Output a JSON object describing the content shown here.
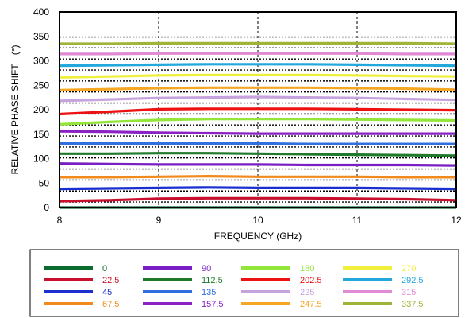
{
  "chart_data": {
    "type": "line",
    "title": "",
    "xlabel": "FREQUENCY (GHz)",
    "ylabel": "RELATIVE PHASE SHIFT",
    "ylabel_unit": "(°)",
    "xlim": [
      8,
      12
    ],
    "ylim": [
      0,
      400
    ],
    "xticks": [
      "8",
      "9",
      "10",
      "11",
      "12"
    ],
    "yticks": [
      "0",
      "50",
      "100",
      "150",
      "200",
      "250",
      "300",
      "350",
      "400"
    ],
    "x_grid": "vertical dashed lines at 9, 10, 11",
    "y_reference_lines": [
      11.25,
      33.75,
      56.25,
      78.75,
      101.25,
      123.75,
      146.25,
      168.75,
      191.25,
      213.75,
      236.25,
      258.75,
      281.25,
      303.75,
      326.25,
      348.75
    ],
    "legend_placement": "bottom",
    "x": [
      8,
      8.5,
      9,
      9.5,
      10,
      10.5,
      11,
      11.5,
      12
    ],
    "series": [
      {
        "name": "0",
        "color": "#0a6b2e",
        "values": [
          0,
          0,
          0,
          0,
          0,
          0,
          0,
          0,
          0
        ]
      },
      {
        "name": "22.5",
        "color": "#c8102e",
        "values": [
          13,
          15,
          18,
          19,
          19,
          19,
          18,
          17,
          15
        ]
      },
      {
        "name": "45",
        "color": "#1a2fd0",
        "values": [
          38,
          39,
          40,
          41,
          40,
          40,
          40,
          39,
          38
        ]
      },
      {
        "name": "67.5",
        "color": "#f08a1c",
        "values": [
          62,
          62,
          63,
          64,
          63,
          63,
          63,
          62,
          62
        ]
      },
      {
        "name": "90",
        "color": "#7a1fc4",
        "values": [
          90,
          89,
          88,
          88,
          88,
          87,
          87,
          87,
          86
        ]
      },
      {
        "name": "112.5",
        "color": "#1e7a2a",
        "values": [
          110,
          110,
          111,
          111,
          110,
          109,
          108,
          107,
          106
        ]
      },
      {
        "name": "135",
        "color": "#2f6fe0",
        "values": [
          131,
          131,
          131,
          131,
          131,
          130,
          130,
          130,
          130
        ]
      },
      {
        "name": "157.5",
        "color": "#8a22c4",
        "values": [
          156,
          155,
          153,
          152,
          151,
          151,
          151,
          151,
          151
        ]
      },
      {
        "name": "180",
        "color": "#92e63a",
        "values": [
          170,
          175,
          179,
          181,
          181,
          181,
          180,
          179,
          178
        ]
      },
      {
        "name": "202.5",
        "color": "#ee1111",
        "values": [
          191,
          196,
          201,
          202,
          202,
          202,
          201,
          200,
          199
        ]
      },
      {
        "name": "225",
        "color": "#c7a3dd",
        "values": [
          218,
          221,
          224,
          225,
          226,
          225,
          224,
          222,
          220
        ]
      },
      {
        "name": "247.5",
        "color": "#f5a623",
        "values": [
          240,
          242,
          244,
          245,
          245,
          245,
          244,
          243,
          241
        ]
      },
      {
        "name": "270",
        "color": "#f0f03c",
        "values": [
          266,
          268,
          270,
          271,
          271,
          271,
          270,
          269,
          268
        ]
      },
      {
        "name": "292.5",
        "color": "#22a8dd",
        "values": [
          290,
          291,
          292,
          293,
          293,
          293,
          292,
          291,
          290
        ]
      },
      {
        "name": "315",
        "color": "#e08ad6",
        "values": [
          314,
          314,
          315,
          315,
          315,
          315,
          315,
          314,
          314
        ]
      },
      {
        "name": "337.5",
        "color": "#a0b43a",
        "values": [
          335,
          335,
          336,
          336,
          336,
          336,
          336,
          336,
          335
        ]
      }
    ]
  }
}
